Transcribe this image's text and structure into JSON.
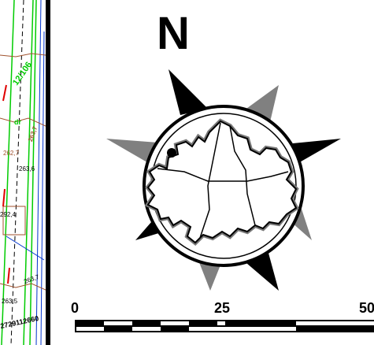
{
  "north_arrow": {
    "label": "N"
  },
  "scale_bar": {
    "labels": [
      "0",
      "25",
      "50"
    ]
  },
  "map_annotations": [
    {
      "text": "12/106"
    },
    {
      "text": "dr"
    },
    {
      "text": "263,7"
    },
    {
      "text": "263,6"
    },
    {
      "text": "262,7"
    },
    {
      "text": "292,4"
    },
    {
      "text": "263,7"
    },
    {
      "text": "263,5"
    },
    {
      "text": "2729112660"
    }
  ],
  "colors": {
    "outline": "#000000",
    "shade": "#808080",
    "parcel_green": "#00cc00",
    "parcel_red": "#e00000",
    "road_blue": "#0033cc",
    "contour_brown": "#a0522d"
  }
}
